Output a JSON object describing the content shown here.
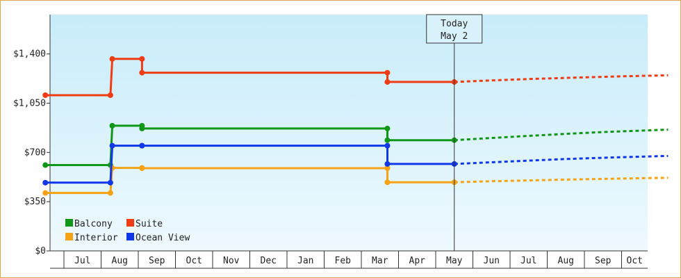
{
  "chart_data": {
    "type": "line",
    "title": "",
    "xlabel": "",
    "ylabel": "",
    "ylim": [
      0,
      1680
    ],
    "y_ticks": [
      {
        "value": 0,
        "label": "$0"
      },
      {
        "value": 350,
        "label": "$350"
      },
      {
        "value": 700,
        "label": "$700"
      },
      {
        "value": 1050,
        "label": "$1,050"
      },
      {
        "value": 1400,
        "label": "$1,400"
      }
    ],
    "x_months": [
      "Jul",
      "Aug",
      "Sep",
      "Oct",
      "Nov",
      "Dec",
      "Jan",
      "Feb",
      "Mar",
      "Apr",
      "May",
      "Jun",
      "Jul",
      "Aug",
      "Sep",
      "Oct"
    ],
    "grid": false,
    "background": "gradient light blue",
    "today": {
      "title": "Today",
      "date": "May 2",
      "x": 10.0
    },
    "legend_position": "bottom-left",
    "series": [
      {
        "name": "Balcony",
        "color": "#109618",
        "points": [
          [
            -1.0,
            610
          ],
          [
            0.75,
            610
          ],
          [
            0.8,
            890
          ],
          [
            1.6,
            890
          ],
          [
            1.6,
            870
          ],
          [
            8.2,
            870
          ],
          [
            8.2,
            787
          ],
          [
            10.0,
            787
          ]
        ],
        "forecast": [
          [
            10.0,
            787
          ],
          [
            11.0,
            803
          ],
          [
            12.0,
            818
          ],
          [
            13.0,
            832
          ],
          [
            14.0,
            845
          ],
          [
            15.0,
            855
          ],
          [
            15.75,
            862
          ]
        ]
      },
      {
        "name": "Suite",
        "color": "#f03c14",
        "points": [
          [
            -1.0,
            1107
          ],
          [
            0.75,
            1107
          ],
          [
            0.8,
            1365
          ],
          [
            1.6,
            1365
          ],
          [
            1.6,
            1267
          ],
          [
            8.2,
            1267
          ],
          [
            8.2,
            1201
          ],
          [
            10.0,
            1201
          ]
        ],
        "forecast": [
          [
            10.0,
            1201
          ],
          [
            11.0,
            1212
          ],
          [
            12.0,
            1222
          ],
          [
            13.0,
            1230
          ],
          [
            14.0,
            1238
          ],
          [
            15.0,
            1244
          ],
          [
            15.75,
            1248
          ]
        ]
      },
      {
        "name": "Interior",
        "color": "#f5a314",
        "points": [
          [
            -1.0,
            412
          ],
          [
            0.75,
            412
          ],
          [
            0.8,
            590
          ],
          [
            1.6,
            590
          ],
          [
            1.6,
            588
          ],
          [
            8.2,
            588
          ],
          [
            8.2,
            488
          ],
          [
            10.0,
            488
          ]
        ],
        "forecast": [
          [
            10.0,
            488
          ],
          [
            11.0,
            495
          ],
          [
            12.0,
            501
          ],
          [
            13.0,
            507
          ],
          [
            14.0,
            512
          ],
          [
            15.0,
            517
          ],
          [
            15.75,
            520
          ]
        ]
      },
      {
        "name": "Ocean View",
        "color": "#1038e8",
        "points": [
          [
            -1.0,
            485
          ],
          [
            0.75,
            485
          ],
          [
            0.8,
            748
          ],
          [
            1.6,
            748
          ],
          [
            1.6,
            748
          ],
          [
            8.2,
            748
          ],
          [
            8.2,
            618
          ],
          [
            10.0,
            618
          ]
        ],
        "forecast": [
          [
            10.0,
            618
          ],
          [
            11.0,
            630
          ],
          [
            12.0,
            642
          ],
          [
            13.0,
            653
          ],
          [
            14.0,
            662
          ],
          [
            15.0,
            670
          ],
          [
            15.75,
            675
          ]
        ]
      }
    ]
  }
}
